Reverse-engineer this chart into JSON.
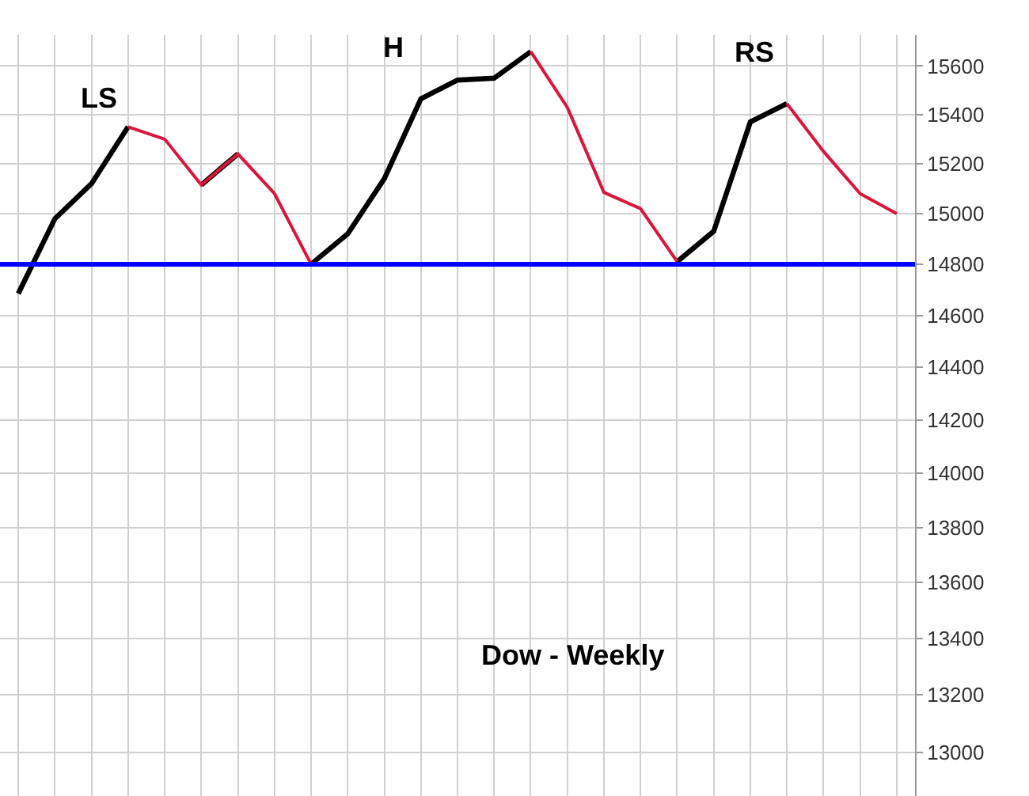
{
  "chart_data": {
    "type": "line",
    "annotations": [
      "LS",
      "H",
      "RS",
      "Dow - Weekly"
    ],
    "categories": [
      null,
      null,
      null,
      null,
      null,
      null,
      null,
      null,
      null,
      null,
      null,
      null,
      null,
      null,
      null,
      null,
      null,
      null,
      null,
      null,
      null,
      null,
      null,
      null,
      null
    ],
    "series": [
      {
        "color": "#000000",
        "values": [
          14685,
          14980,
          15120,
          15350,
          null,
          15115,
          15240,
          null,
          14800,
          14920,
          15140,
          15465,
          15542,
          15550,
          15660,
          null,
          null,
          null,
          14810,
          14930,
          15370,
          15445,
          null,
          null,
          null
        ]
      },
      {
        "color": "#dc143c",
        "values": [
          null,
          null,
          null,
          15350,
          15300,
          15115,
          15240,
          15080,
          14800,
          null,
          null,
          null,
          null,
          null,
          15660,
          15430,
          15085,
          15020,
          14810,
          null,
          null,
          15445,
          15250,
          15080,
          15000
        ]
      }
    ],
    "ref_lines": [
      {
        "axis": "y",
        "value": 14800,
        "color": "#0000ff"
      }
    ],
    "log": true,
    "ylim": [
      12850,
      15730
    ],
    "yticks": [
      13000,
      13200,
      13400,
      13600,
      13800,
      14000,
      14200,
      14400,
      14600,
      14800,
      15000,
      15200,
      15400,
      15600
    ],
    "grid": true,
    "legend": false,
    "tick_labels": "y",
    "marker": "none",
    "line_style": "solid"
  }
}
